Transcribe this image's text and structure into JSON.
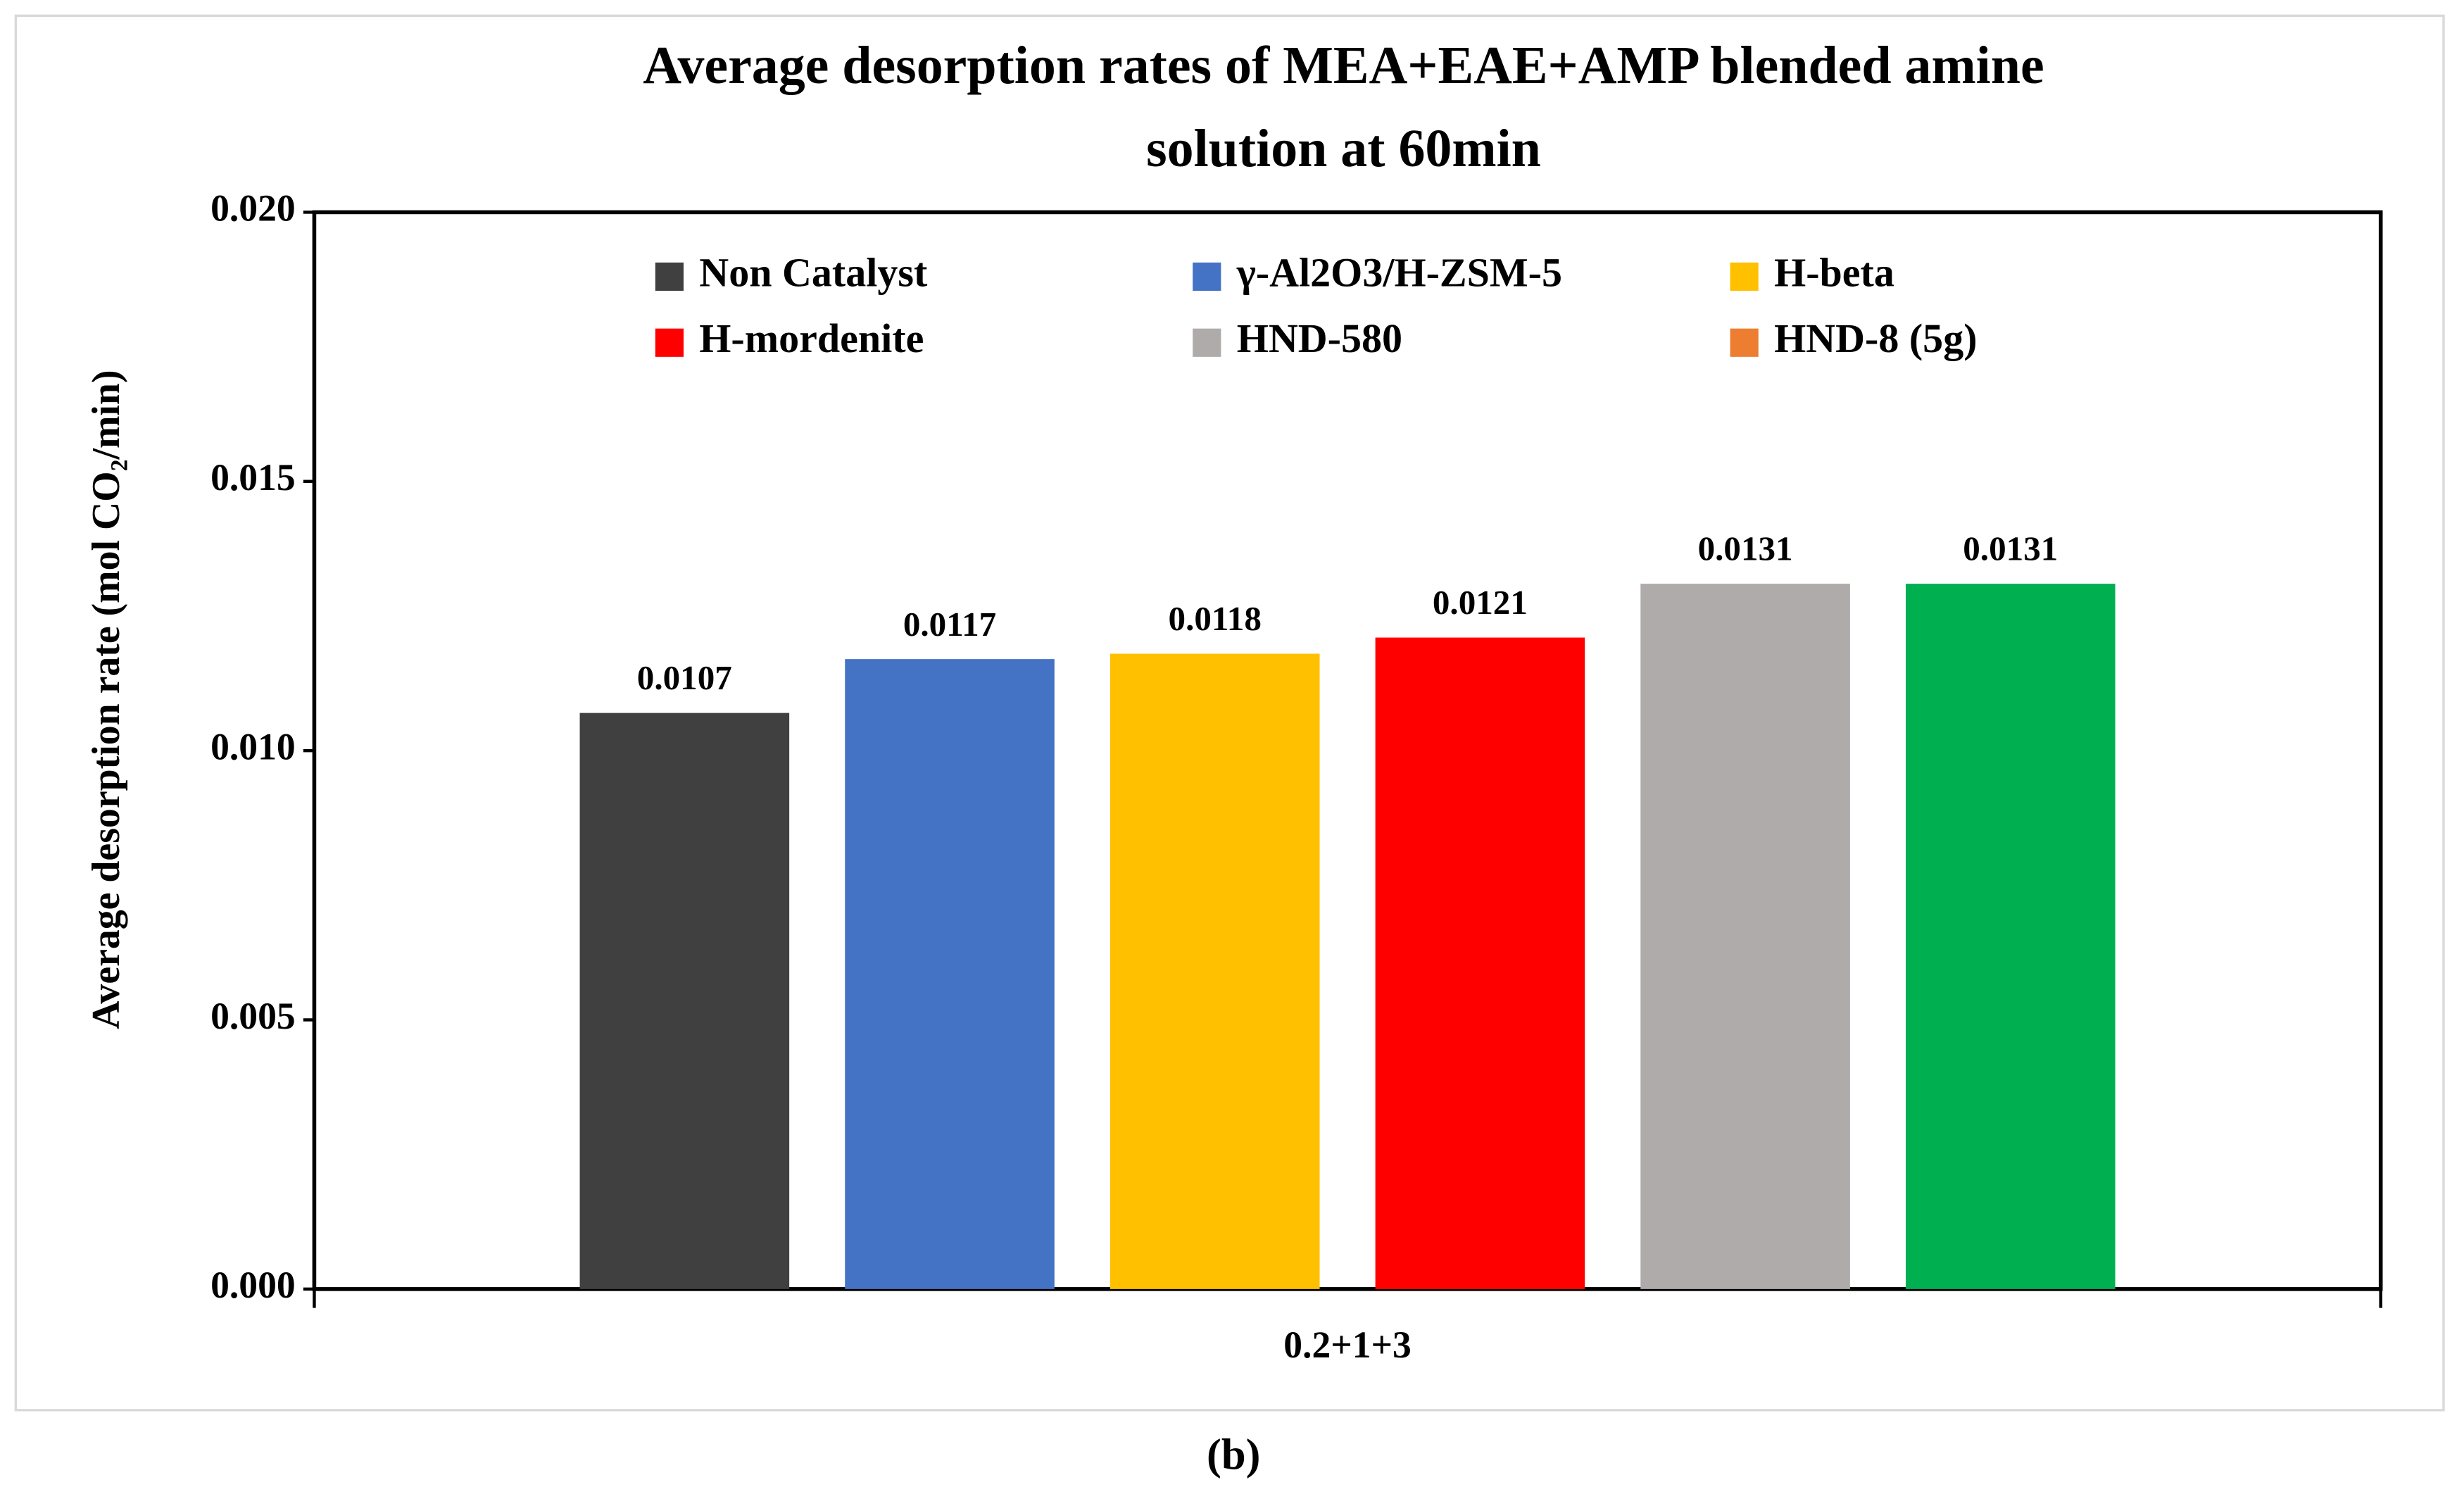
{
  "chart_data": {
    "type": "bar",
    "title": [
      "Average desorption rates of MEA+EAE+AMP blended amine",
      "solution at  60min"
    ],
    "y_label": "Average desorption rate (mol CO₂/min)",
    "categories": [
      "0.2+1+3"
    ],
    "series": [
      {
        "name": "Non Catalyst",
        "color": "#404040",
        "values": [
          0.0107
        ]
      },
      {
        "name": "γ-Al2O3/H-ZSM-5",
        "color": "#4472c4",
        "values": [
          0.0117
        ]
      },
      {
        "name": "H-beta",
        "color": "#ffc000",
        "values": [
          0.0118
        ]
      },
      {
        "name": "H-mordenite",
        "color": "#ff0000",
        "values": [
          0.0121
        ]
      },
      {
        "name": "HND-580",
        "color": "#afabab",
        "values": [
          0.0131
        ]
      },
      {
        "name": "HND-8 (5g)",
        "color": "#00b050",
        "legend_color": "#ed7d31",
        "values": [
          0.0131
        ]
      }
    ],
    "ylim": [
      0,
      0.02
    ],
    "yticks": [
      {
        "value": 0,
        "label": "0.000"
      },
      {
        "value": 0.005,
        "label": "0.005"
      },
      {
        "value": 0.01,
        "label": "0.010"
      },
      {
        "value": 0.015,
        "label": "0.015"
      },
      {
        "value": 0.02,
        "label": "0.020"
      }
    ],
    "grid": false,
    "legend": "top",
    "caption": "(b)"
  }
}
